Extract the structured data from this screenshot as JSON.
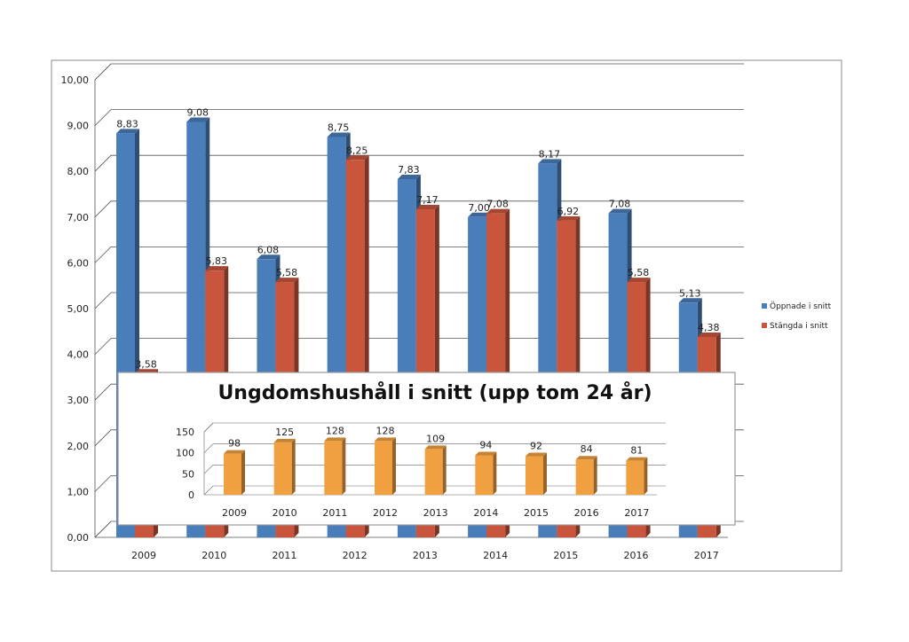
{
  "chart_data": [
    {
      "type": "bar",
      "categories": [
        "2009",
        "2010",
        "2011",
        "2012",
        "2013",
        "2014",
        "2015",
        "2016",
        "2017"
      ],
      "series": [
        {
          "name": "Öppnade i snitt",
          "values": [
            8.83,
            9.08,
            6.08,
            8.75,
            7.83,
            7.0,
            8.17,
            7.08,
            5.13
          ],
          "labels": [
            "8,83",
            "9,08",
            "6,08",
            "8,75",
            "7,83",
            "7,00",
            "8,17",
            "7,08",
            "5,13"
          ],
          "color": "#4a7ebb"
        },
        {
          "name": "Stängda i snitt",
          "values": [
            3.58,
            5.83,
            5.58,
            8.25,
            7.17,
            7.08,
            6.92,
            5.58,
            4.38
          ],
          "labels": [
            "3,58",
            "5,83",
            "5,58",
            "8,25",
            "7,17",
            "7,08",
            "6,92",
            "5,58",
            "4,38"
          ],
          "color": "#c8553c"
        }
      ],
      "yticks": [
        "0,00",
        "1,00",
        "2,00",
        "3,00",
        "4,00",
        "5,00",
        "6,00",
        "7,00",
        "8,00",
        "9,00",
        "10,00"
      ],
      "ylim": [
        0,
        10
      ],
      "grid": true,
      "legend": "right",
      "title": "",
      "xlabel": "",
      "ylabel": ""
    },
    {
      "type": "bar",
      "title": "Ungdomshushåll i snitt (upp tom 24 år)",
      "categories": [
        "2009",
        "2010",
        "2011",
        "2012",
        "2013",
        "2014",
        "2015",
        "2016",
        "2017"
      ],
      "values": [
        98,
        125,
        128,
        128,
        109,
        94,
        92,
        84,
        81
      ],
      "yticks": [
        "0",
        "50",
        "100",
        "150"
      ],
      "ylim": [
        0,
        150
      ],
      "color": "#f0a040",
      "grid": true,
      "legend": "none",
      "xlabel": "",
      "ylabel": ""
    }
  ]
}
